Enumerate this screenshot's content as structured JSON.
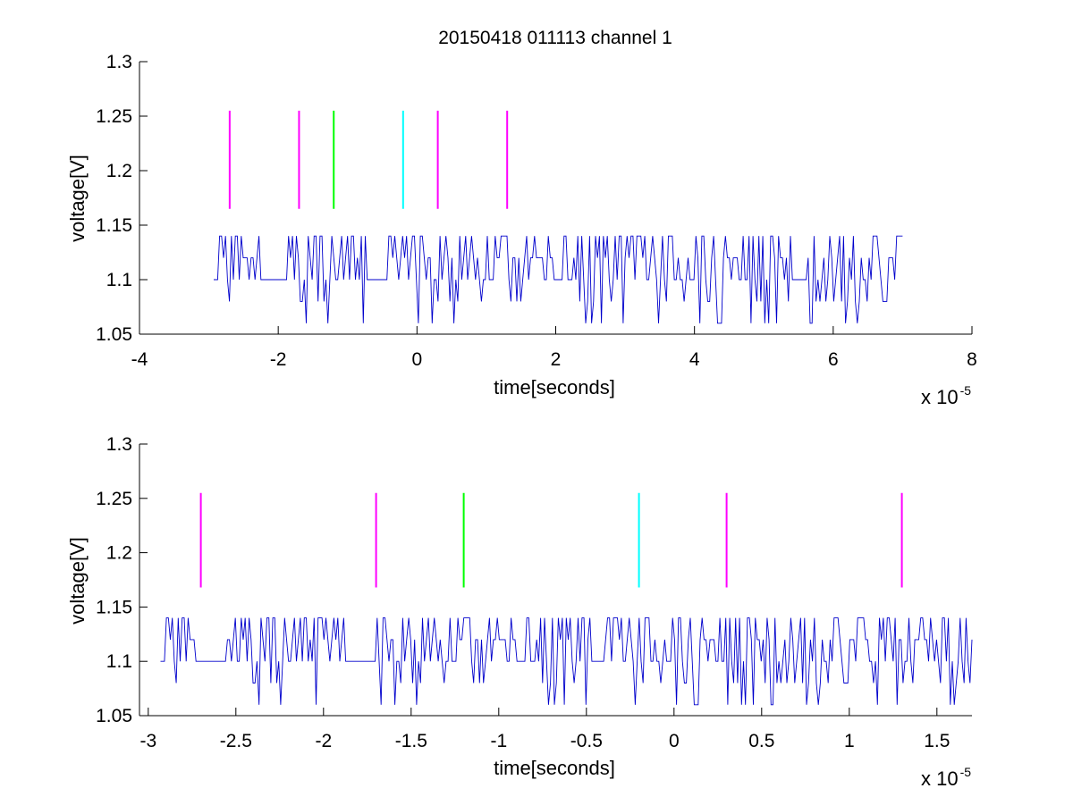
{
  "chart_data": [
    {
      "type": "line",
      "title": "20150418 011113 channel 1",
      "xlabel": "time[seconds]",
      "ylabel": "voltage[V]",
      "x_multiplier_label": "x 10",
      "x_multiplier_exponent": "-5",
      "xlim": [
        -4,
        8
      ],
      "ylim": [
        1.05,
        1.3
      ],
      "xticks": [
        -4,
        -2,
        0,
        2,
        4,
        6,
        8
      ],
      "xtick_labels": [
        "-4",
        "-2",
        "0",
        "2",
        "4",
        "6",
        "8"
      ],
      "yticks": [
        1.05,
        1.1,
        1.15,
        1.2,
        1.25,
        1.3
      ],
      "ytick_labels": [
        "1.05",
        "1.1",
        "1.15",
        "1.2",
        "1.25",
        "1.3"
      ],
      "grid": false,
      "signal": {
        "color": "#0000cc",
        "x_range": [
          -2.93,
          7.0
        ],
        "baseline": 1.1,
        "levels": [
          1.06,
          1.08,
          1.1,
          1.12,
          1.14
        ],
        "flat_segments": [
          [
            -2.2,
            -1.86
          ],
          [
            -0.72,
            -0.42
          ],
          [
            5.4,
            5.62
          ]
        ],
        "seed": 11
      },
      "markers": [
        {
          "x": -2.7,
          "y0": 1.165,
          "y1": 1.255,
          "color": "#ff00ff"
        },
        {
          "x": -1.7,
          "y0": 1.165,
          "y1": 1.255,
          "color": "#ff00ff"
        },
        {
          "x": -1.2,
          "y0": 1.165,
          "y1": 1.255,
          "color": "#00ff00"
        },
        {
          "x": -0.2,
          "y0": 1.165,
          "y1": 1.255,
          "color": "#00ffff"
        },
        {
          "x": 0.3,
          "y0": 1.165,
          "y1": 1.255,
          "color": "#ff00ff"
        },
        {
          "x": 1.3,
          "y0": 1.165,
          "y1": 1.255,
          "color": "#ff00ff"
        }
      ]
    },
    {
      "type": "line",
      "title": "",
      "xlabel": "time[seconds]",
      "ylabel": "voltage[V]",
      "x_multiplier_label": "x 10",
      "x_multiplier_exponent": "-5",
      "xlim": [
        -3.05,
        1.7
      ],
      "ylim": [
        1.05,
        1.3
      ],
      "xticks": [
        -3,
        -2.5,
        -2,
        -1.5,
        -1,
        -0.5,
        0,
        0.5,
        1,
        1.5
      ],
      "xtick_labels": [
        "-3",
        "-2.5",
        "-2",
        "-1.5",
        "-1",
        "-0.5",
        "0",
        "0.5",
        "1",
        "1.5"
      ],
      "yticks": [
        1.05,
        1.1,
        1.15,
        1.2,
        1.25,
        1.3
      ],
      "ytick_labels": [
        "1.05",
        "1.1",
        "1.15",
        "1.2",
        "1.25",
        "1.3"
      ],
      "grid": false,
      "signal": {
        "color": "#0000cc",
        "x_range": [
          -2.93,
          1.7
        ],
        "baseline": 1.1,
        "levels": [
          1.06,
          1.08,
          1.1,
          1.12,
          1.14
        ],
        "flat_segments": [
          [
            -2.72,
            -2.55
          ],
          [
            -1.88,
            -1.7
          ],
          [
            -0.48,
            -0.4
          ]
        ],
        "seed": 11
      },
      "markers": [
        {
          "x": -2.7,
          "y0": 1.168,
          "y1": 1.255,
          "color": "#ff00ff"
        },
        {
          "x": -1.7,
          "y0": 1.168,
          "y1": 1.255,
          "color": "#ff00ff"
        },
        {
          "x": -1.2,
          "y0": 1.168,
          "y1": 1.255,
          "color": "#00ff00"
        },
        {
          "x": -0.2,
          "y0": 1.168,
          "y1": 1.255,
          "color": "#00ffff"
        },
        {
          "x": 0.3,
          "y0": 1.168,
          "y1": 1.255,
          "color": "#ff00ff"
        },
        {
          "x": 1.3,
          "y0": 1.168,
          "y1": 1.255,
          "color": "#ff00ff"
        }
      ]
    }
  ]
}
